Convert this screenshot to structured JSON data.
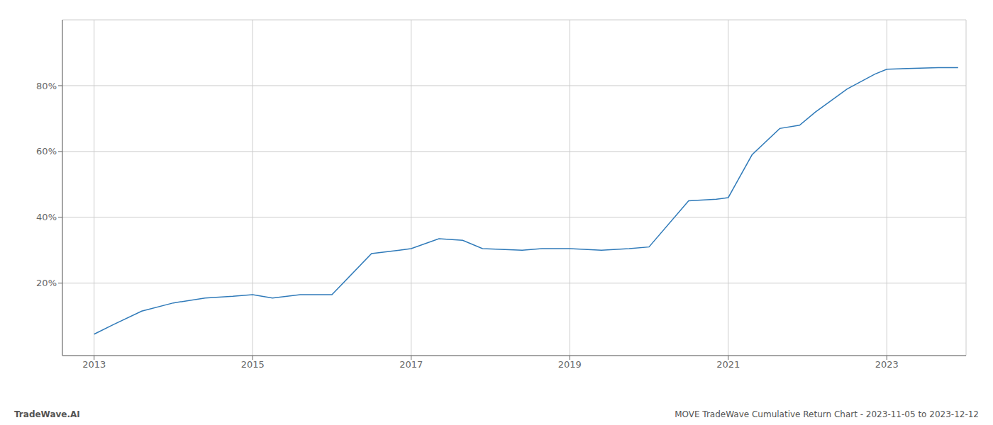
{
  "chart_data": {
    "type": "line",
    "title": "MOVE TradeWave Cumulative Return Chart - 2023-11-05 to 2023-12-12",
    "annotations": [
      "TradeWave.AI"
    ],
    "x": [
      2013.0,
      2013.25,
      2013.6,
      2014.0,
      2014.4,
      2014.75,
      2015.0,
      2015.25,
      2015.6,
      2016.0,
      2016.5,
      2016.85,
      2017.0,
      2017.35,
      2017.65,
      2017.9,
      2018.4,
      2018.65,
      2019.0,
      2019.4,
      2019.75,
      2020.0,
      2020.5,
      2020.85,
      2021.0,
      2021.3,
      2021.65,
      2021.9,
      2022.1,
      2022.5,
      2022.85,
      2023.0,
      2023.65,
      2023.9
    ],
    "values": [
      4.5,
      7.5,
      11.5,
      14.0,
      15.5,
      16.0,
      16.5,
      15.5,
      16.5,
      16.5,
      29.0,
      30.0,
      30.5,
      33.5,
      33.0,
      30.5,
      30.0,
      30.5,
      30.5,
      30.0,
      30.5,
      31.0,
      45.0,
      45.5,
      46.0,
      59.0,
      67.0,
      68.0,
      72.0,
      79.0,
      83.5,
      85.0,
      85.5,
      85.5
    ],
    "color": "#2f7ab9",
    "xlim": [
      2012.6,
      2024.0
    ],
    "xticks": [
      2013,
      2015,
      2017,
      2019,
      2021,
      2023
    ],
    "ylim": [
      -2,
      100
    ],
    "yticks": [
      {
        "value": 20,
        "label": "20%"
      },
      {
        "value": 40,
        "label": "40%"
      },
      {
        "value": 60,
        "label": "60%"
      },
      {
        "value": 80,
        "label": "80%"
      }
    ],
    "grid": true
  }
}
